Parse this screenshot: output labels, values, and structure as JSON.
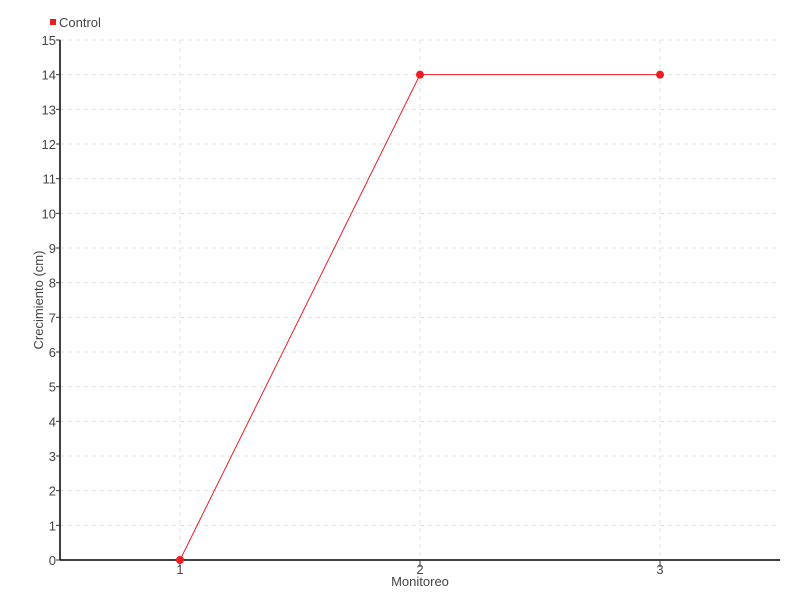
{
  "chart_data": {
    "type": "line",
    "title": "",
    "xlabel": "Monitoreo",
    "ylabel": "Crecimiento (cm)",
    "x": [
      1,
      2,
      3
    ],
    "xticks": [
      "1",
      "2",
      "3"
    ],
    "xlim": [
      0.5,
      3.5
    ],
    "ylim": [
      0,
      15
    ],
    "yticks": [
      0,
      1,
      2,
      3,
      4,
      5,
      6,
      7,
      8,
      9,
      10,
      11,
      12,
      13,
      14,
      15
    ],
    "grid": true,
    "legend_position": "top-left",
    "series": [
      {
        "name": "Control",
        "values": [
          0,
          14,
          14
        ],
        "color": "#ee1c25"
      }
    ]
  }
}
